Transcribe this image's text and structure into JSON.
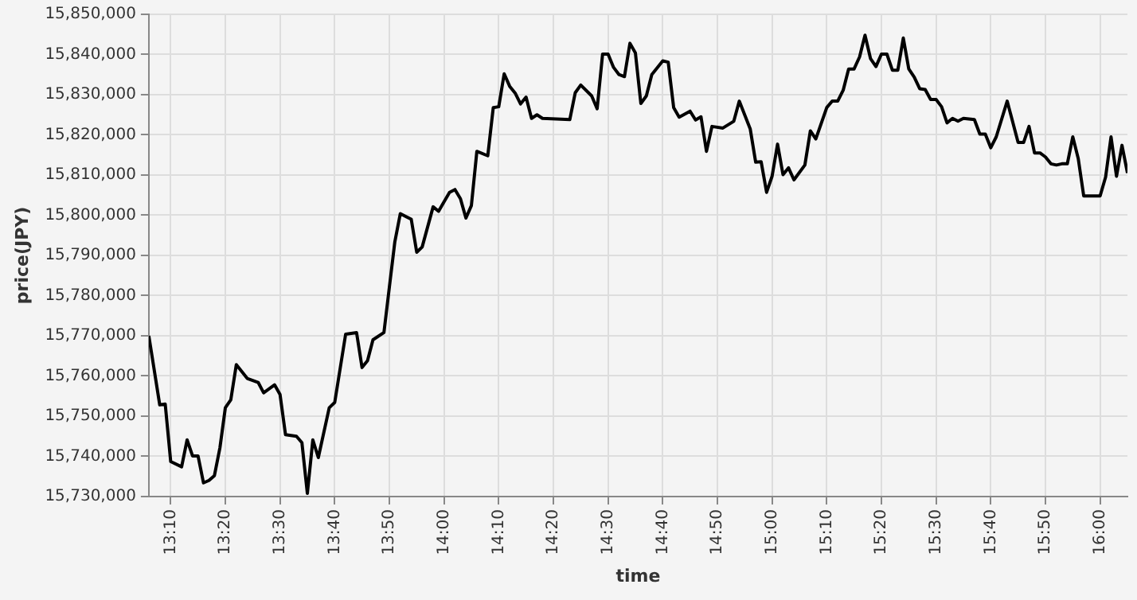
{
  "chart_data": {
    "type": "line",
    "xlabel": "time",
    "ylabel": "price(JPY)",
    "x": [
      13.1,
      13.1333,
      13.15,
      13.1667,
      13.2,
      13.2167,
      13.2333,
      13.25,
      13.2667,
      13.2833,
      13.3,
      13.3167,
      13.3333,
      13.35,
      13.3667,
      13.4,
      13.4333,
      13.45,
      13.4833,
      13.5,
      13.5167,
      13.55,
      13.5667,
      13.5833,
      13.6,
      13.6167,
      13.65,
      13.6667,
      13.7,
      13.7333,
      13.75,
      13.7667,
      13.7833,
      13.8167,
      13.8333,
      13.85,
      13.8667,
      13.9,
      13.9167,
      13.9333,
      13.9667,
      13.9833,
      14.0167,
      14.0333,
      14.05,
      14.0667,
      14.0833,
      14.1,
      14.1333,
      14.15,
      14.1667,
      14.1833,
      14.2,
      14.2167,
      14.2333,
      14.25,
      14.2667,
      14.2833,
      14.3,
      14.3833,
      14.4,
      14.4167,
      14.45,
      14.4667,
      14.4833,
      14.5,
      14.5167,
      14.5333,
      14.55,
      14.5667,
      14.5833,
      14.6,
      14.6167,
      14.6333,
      14.6667,
      14.6833,
      14.7,
      14.7167,
      14.75,
      14.7667,
      14.7833,
      14.8,
      14.8167,
      14.85,
      14.8833,
      14.9,
      14.9333,
      14.95,
      14.9667,
      14.9833,
      15,
      15.0167,
      15.0333,
      15.05,
      15.0667,
      15.1,
      15.1167,
      15.1333,
      15.1667,
      15.1833,
      15.2,
      15.2167,
      15.2333,
      15.25,
      15.2667,
      15.2833,
      15.3,
      15.3167,
      15.3333,
      15.35,
      15.3667,
      15.3833,
      15.4,
      15.4167,
      15.4333,
      15.45,
      15.4667,
      15.4833,
      15.5,
      15.5167,
      15.5333,
      15.55,
      15.5667,
      15.5833,
      15.6167,
      15.6333,
      15.65,
      15.6667,
      15.6833,
      15.7167,
      15.75,
      15.7667,
      15.7833,
      15.8,
      15.8167,
      15.8333,
      15.85,
      15.8667,
      15.8833,
      15.9,
      15.9167,
      15.9333,
      15.95,
      16,
      16.0167,
      16.0333,
      16.05,
      16.0667,
      16.0833
    ],
    "series": [
      {
        "color": "#000000",
        "values": [
          15770000,
          15752800,
          15753000,
          15738700,
          15737400,
          15744100,
          15740100,
          15740100,
          15733400,
          15734000,
          15735200,
          15742100,
          15752100,
          15754100,
          15762800,
          15759400,
          15758400,
          15755800,
          15757800,
          15755400,
          15745400,
          15745000,
          15743400,
          15730800,
          15744100,
          15739700,
          15752100,
          15753400,
          15770400,
          15770800,
          15762100,
          15763800,
          15769000,
          15770800,
          15782100,
          15793400,
          15800400,
          15799000,
          15790800,
          15792100,
          15802100,
          15801000,
          15805700,
          15806400,
          15804100,
          15799300,
          15802400,
          15815900,
          15814800,
          15826800,
          15827000,
          15835200,
          15832100,
          15830400,
          15827700,
          15829400,
          15824100,
          15825000,
          15824100,
          15823800,
          15830500,
          15832400,
          15829700,
          15826500,
          15840100,
          15840100,
          15836800,
          15835000,
          15834500,
          15842800,
          15840400,
          15827800,
          15829700,
          15835000,
          15838400,
          15838100,
          15826800,
          15824400,
          15825900,
          15823700,
          15824500,
          15815900,
          15822100,
          15821700,
          15823400,
          15828400,
          15821500,
          15813200,
          15813300,
          15805700,
          15809700,
          15817700,
          15810100,
          15811800,
          15808800,
          15812500,
          15821000,
          15819000,
          15826800,
          15828400,
          15828400,
          15831100,
          15836400,
          15836400,
          15839400,
          15844800,
          15839000,
          15837000,
          15840100,
          15840100,
          15836100,
          15836100,
          15844100,
          15836400,
          15834400,
          15831500,
          15831300,
          15828800,
          15828800,
          15827000,
          15823000,
          15824100,
          15823400,
          15824100,
          15823800,
          15820200,
          15820200,
          15816800,
          15819500,
          15828400,
          15818100,
          15818100,
          15822100,
          15815500,
          15815500,
          15814500,
          15812800,
          15812500,
          15812800,
          15812800,
          15819500,
          15814100,
          15804800,
          15804800,
          15809500,
          15819500,
          15809700,
          15817400,
          15810500
        ]
      }
    ],
    "xlim": [
      13.1,
      16.0833
    ],
    "ylim": [
      15730000,
      15850000
    ],
    "xticks": [
      {
        "value": 13.1667,
        "label": "13:10"
      },
      {
        "value": 13.3333,
        "label": "13:20"
      },
      {
        "value": 13.5,
        "label": "13:30"
      },
      {
        "value": 13.6667,
        "label": "13:40"
      },
      {
        "value": 13.8333,
        "label": "13:50"
      },
      {
        "value": 14,
        "label": "14:00"
      },
      {
        "value": 14.1667,
        "label": "14:10"
      },
      {
        "value": 14.3333,
        "label": "14:20"
      },
      {
        "value": 14.5,
        "label": "14:30"
      },
      {
        "value": 14.6667,
        "label": "14:40"
      },
      {
        "value": 14.8333,
        "label": "14:50"
      },
      {
        "value": 15,
        "label": "15:00"
      },
      {
        "value": 15.1667,
        "label": "15:10"
      },
      {
        "value": 15.3333,
        "label": "15:20"
      },
      {
        "value": 15.5,
        "label": "15:30"
      },
      {
        "value": 15.6667,
        "label": "15:40"
      },
      {
        "value": 15.8333,
        "label": "15:50"
      },
      {
        "value": 16,
        "label": "16:00"
      }
    ],
    "yticks": [
      {
        "value": 15730000,
        "label": "15,730,000"
      },
      {
        "value": 15740000,
        "label": "15,740,000"
      },
      {
        "value": 15750000,
        "label": "15,750,000"
      },
      {
        "value": 15760000,
        "label": "15,760,000"
      },
      {
        "value": 15770000,
        "label": "15,770,000"
      },
      {
        "value": 15780000,
        "label": "15,780,000"
      },
      {
        "value": 15790000,
        "label": "15,790,000"
      },
      {
        "value": 15800000,
        "label": "15,800,000"
      },
      {
        "value": 15810000,
        "label": "15,810,000"
      },
      {
        "value": 15820000,
        "label": "15,820,000"
      },
      {
        "value": 15830000,
        "label": "15,830,000"
      },
      {
        "value": 15840000,
        "label": "15,840,000"
      },
      {
        "value": 15850000,
        "label": "15,850,000"
      }
    ],
    "grid": true,
    "legend": false,
    "marker": "none",
    "line_style": "solid"
  }
}
